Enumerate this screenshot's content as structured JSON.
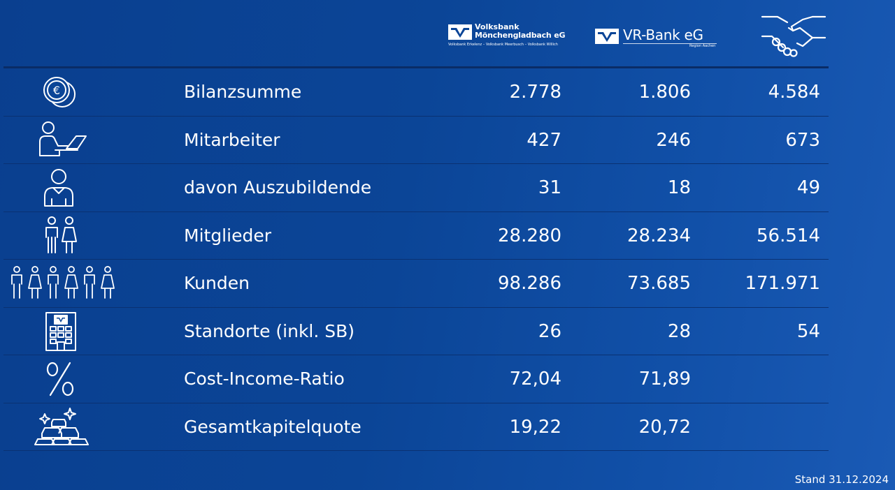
{
  "header": {
    "logos": {
      "volksbank": {
        "name_line1": "Volksbank",
        "name_line2": "Mönchengladbach eG",
        "subline": "Volksbank Erkelenz – Volksbank Meerbusch – Volksbank Willich"
      },
      "vrbank": {
        "name": "VR-Bank eG",
        "subline": "Region Aachen"
      },
      "combined_icon": "handshake-icon"
    }
  },
  "table": {
    "rows": [
      {
        "icon": "euro-coins-icon",
        "label": "Bilanzsumme",
        "v1": "2.778",
        "v2": "1.806",
        "v3": "4.584"
      },
      {
        "icon": "employee-laptop-icon",
        "label": "Mitarbeiter",
        "v1": "427",
        "v2": "246",
        "v3": "673"
      },
      {
        "icon": "trainee-icon",
        "label": "davon Auszubildende",
        "v1": "31",
        "v2": "18",
        "v3": "49"
      },
      {
        "icon": "members-icon",
        "label": "Mitglieder",
        "v1": "28.280",
        "v2": "28.234",
        "v3": "56.514"
      },
      {
        "icon": "customers-icon",
        "label": "Kunden",
        "v1": "98.286",
        "v2": "73.685",
        "v3": "171.971"
      },
      {
        "icon": "bank-building-icon",
        "label": "Standorte (inkl. SB)",
        "v1": "26",
        "v2": "28",
        "v3": "54"
      },
      {
        "icon": "percent-icon",
        "label": "Cost-Income-Ratio",
        "v1": "72,04",
        "v2": "71,89",
        "v3": ""
      },
      {
        "icon": "gold-bars-icon",
        "label": "Gesamtkapitelquote",
        "v1": "19,22",
        "v2": "20,72",
        "v3": ""
      }
    ]
  },
  "footer": {
    "date_note": "Stand 31.12.2024"
  },
  "colors": {
    "background": "#0b4597",
    "text": "#ffffff",
    "divider": "#0a3172"
  }
}
